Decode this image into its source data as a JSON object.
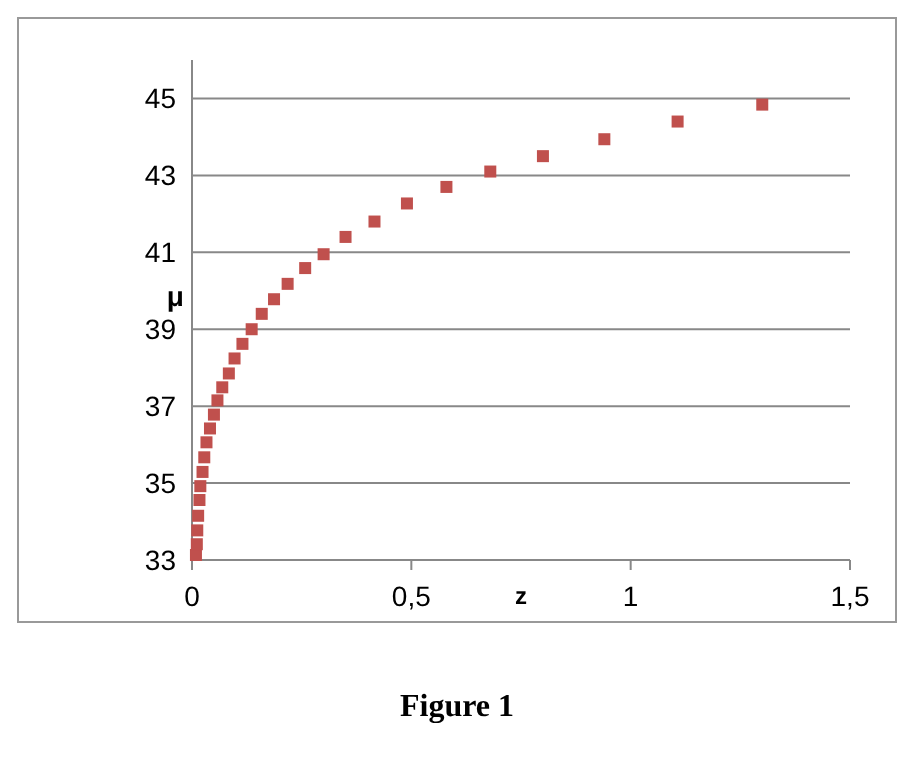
{
  "chart_data": {
    "type": "scatter",
    "xlabel": "z",
    "ylabel": "μ",
    "annotations": [
      "Figure 1"
    ],
    "x": [
      0.009,
      0.011,
      0.012,
      0.014,
      0.017,
      0.019,
      0.024,
      0.028,
      0.033,
      0.041,
      0.05,
      0.058,
      0.069,
      0.084,
      0.097,
      0.115,
      0.136,
      0.159,
      0.187,
      0.218,
      0.258,
      0.3,
      0.35,
      0.416,
      0.49,
      0.58,
      0.68,
      0.8,
      0.94,
      1.107,
      1.3
    ],
    "series": [
      {
        "color": "#c0504d",
        "values": [
          33.13,
          33.41,
          33.77,
          34.15,
          34.56,
          34.92,
          35.29,
          35.67,
          36.06,
          36.42,
          36.78,
          37.15,
          37.49,
          37.85,
          38.24,
          38.62,
          39.0,
          39.4,
          39.78,
          40.18,
          40.59,
          40.95,
          41.4,
          41.8,
          42.27,
          42.7,
          43.1,
          43.5,
          43.94,
          44.4,
          44.84
        ]
      }
    ],
    "xlim": [
      0,
      1.5
    ],
    "xticks": [
      0,
      {
        "value": 0.5,
        "label": "0,5"
      },
      1,
      {
        "value": 1.5,
        "label": "1,5"
      }
    ],
    "ylim": [
      33,
      46
    ],
    "yticks": [
      33,
      35,
      37,
      39,
      41,
      43,
      45
    ],
    "grid": "y",
    "marker": "square"
  }
}
